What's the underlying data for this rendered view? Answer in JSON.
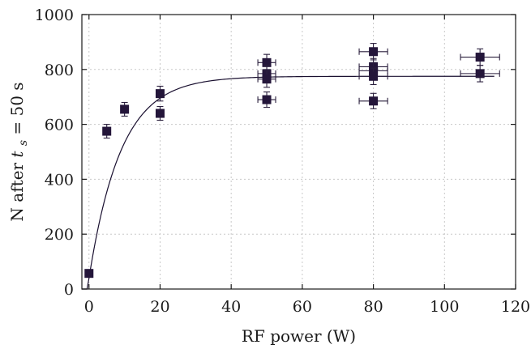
{
  "chart_data": {
    "type": "scatter",
    "title": "",
    "xlabel": "RF power (W)",
    "ylabel_parts": {
      "pre": "N after ",
      "var": "t",
      "sub": "s",
      "post": " = 50 s"
    },
    "xlim": [
      -2,
      120
    ],
    "ylim": [
      0,
      1000
    ],
    "xticks": [
      0,
      20,
      40,
      60,
      80,
      100,
      120
    ],
    "yticks": [
      0,
      200,
      400,
      600,
      800,
      1000
    ],
    "grid": true,
    "legend": "none",
    "marker_color": "#24163a",
    "points": [
      {
        "x": 0,
        "y": 57,
        "xerr": 0,
        "yerr": 0
      },
      {
        "x": 5,
        "y": 575,
        "xerr": 0,
        "yerr": 25
      },
      {
        "x": 10,
        "y": 655,
        "xerr": 0,
        "yerr": 25
      },
      {
        "x": 20,
        "y": 712,
        "xerr": 0,
        "yerr": 27
      },
      {
        "x": 20,
        "y": 640,
        "xerr": 0,
        "yerr": 25
      },
      {
        "x": 50,
        "y": 825,
        "xerr": 2.5,
        "yerr": 30
      },
      {
        "x": 50,
        "y": 785,
        "xerr": 2.5,
        "yerr": 30
      },
      {
        "x": 50,
        "y": 765,
        "xerr": 2.5,
        "yerr": 30
      },
      {
        "x": 50,
        "y": 690,
        "xerr": 2.5,
        "yerr": 28
      },
      {
        "x": 80,
        "y": 865,
        "xerr": 4,
        "yerr": 30
      },
      {
        "x": 80,
        "y": 810,
        "xerr": 4,
        "yerr": 30
      },
      {
        "x": 80,
        "y": 795,
        "xerr": 4,
        "yerr": 30
      },
      {
        "x": 80,
        "y": 775,
        "xerr": 4,
        "yerr": 30
      },
      {
        "x": 80,
        "y": 685,
        "xerr": 4,
        "yerr": 28
      },
      {
        "x": 110,
        "y": 845,
        "xerr": 5.5,
        "yerr": 30
      },
      {
        "x": 110,
        "y": 785,
        "xerr": 5.5,
        "yerr": 30
      }
    ],
    "fit": {
      "type": "exponential-saturation",
      "y0": 40,
      "ymax": 775,
      "tau": 9,
      "x_range": [
        -2,
        114
      ]
    }
  }
}
